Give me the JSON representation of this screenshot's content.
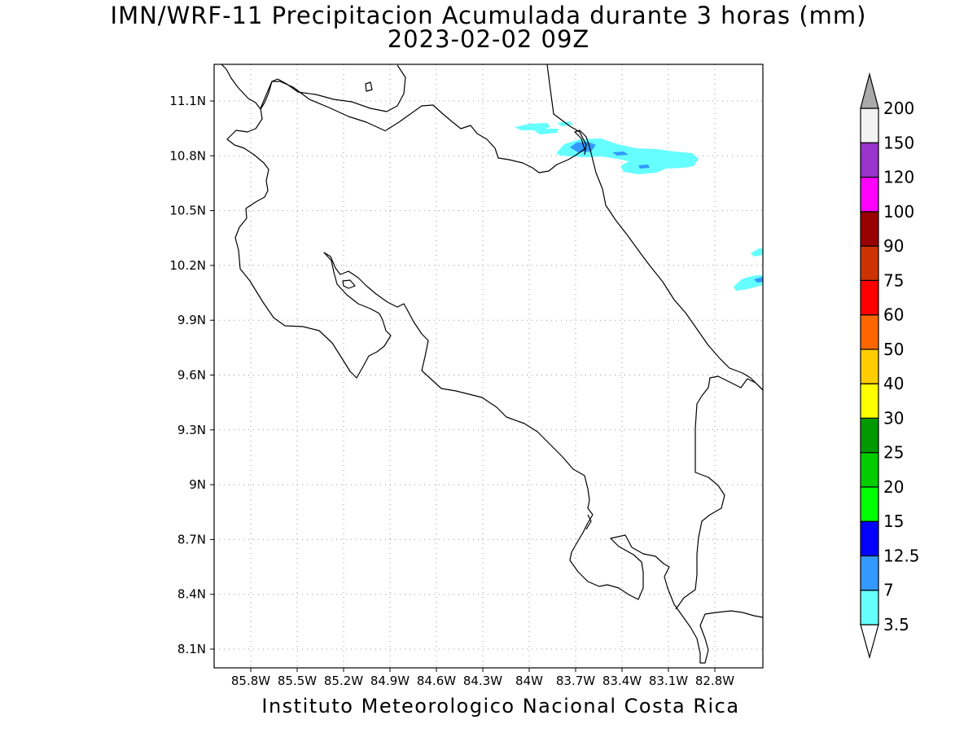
{
  "title": {
    "line1": "IMN/WRF-11 Precipitacion Acumulada durante 3 horas (mm)",
    "line2": "2023-02-02 09Z"
  },
  "footer": "Instituto Meteorologico Nacional Costa Rica",
  "lat_labels": [
    "11.1N",
    "10.8N",
    "10.5N",
    "10.2N",
    "9.9N",
    "9.6N",
    "9.3N",
    "9N",
    "8.7N",
    "8.4N",
    "8.1N"
  ],
  "lon_labels": [
    "85.8W",
    "85.5W",
    "85.2W",
    "84.9W",
    "84.6W",
    "84.3W",
    "84W",
    "83.7W",
    "83.4W",
    "83.1W",
    "82.8W"
  ],
  "colorbar": {
    "levels": [
      "3.5",
      "7",
      "12.5",
      "15",
      "20",
      "25",
      "30",
      "40",
      "50",
      "60",
      "75",
      "90",
      "100",
      "120",
      "150",
      "200"
    ],
    "colors": [
      "#66ffff",
      "#3399ff",
      "#0000ff",
      "#00ff00",
      "#00cc00",
      "#009900",
      "#ffff00",
      "#ffcc00",
      "#ff6600",
      "#ff0000",
      "#cc3300",
      "#990000",
      "#ff00ff",
      "#9933cc",
      "#f2f2f2",
      "#aaaaaa"
    ]
  }
}
